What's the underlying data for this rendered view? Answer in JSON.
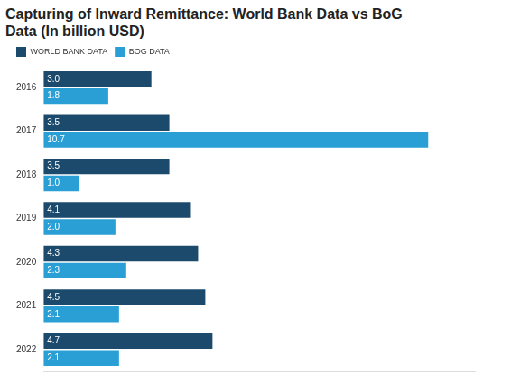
{
  "chart_data": {
    "type": "bar",
    "orientation": "horizontal",
    "title": "Capturing of Inward Remittance: World Bank Data vs BoG Data (In billion USD)",
    "categories": [
      "2016",
      "2017",
      "2018",
      "2019",
      "2020",
      "2021",
      "2022"
    ],
    "series": [
      {
        "name": "WORLD BANK DATA",
        "color": "#1c4a6c",
        "values": [
          3.0,
          3.5,
          3.5,
          4.1,
          4.3,
          4.5,
          4.7
        ],
        "value_labels": [
          "3.0",
          "3.5",
          "3.5",
          "4.1",
          "4.3",
          "4.5",
          "4.7"
        ]
      },
      {
        "name": "BOG DATA",
        "color": "#2a9fd6",
        "values": [
          1.8,
          10.7,
          1.0,
          2.0,
          2.3,
          2.1,
          2.1
        ],
        "value_labels": [
          "1.8",
          "10.7",
          "1.0",
          "2.0",
          "2.3",
          "2.1",
          "2.1"
        ]
      }
    ],
    "xlim": [
      0,
      12
    ],
    "grid": false,
    "legend": "top-left",
    "data_labels": true,
    "tick_labels": "y"
  }
}
